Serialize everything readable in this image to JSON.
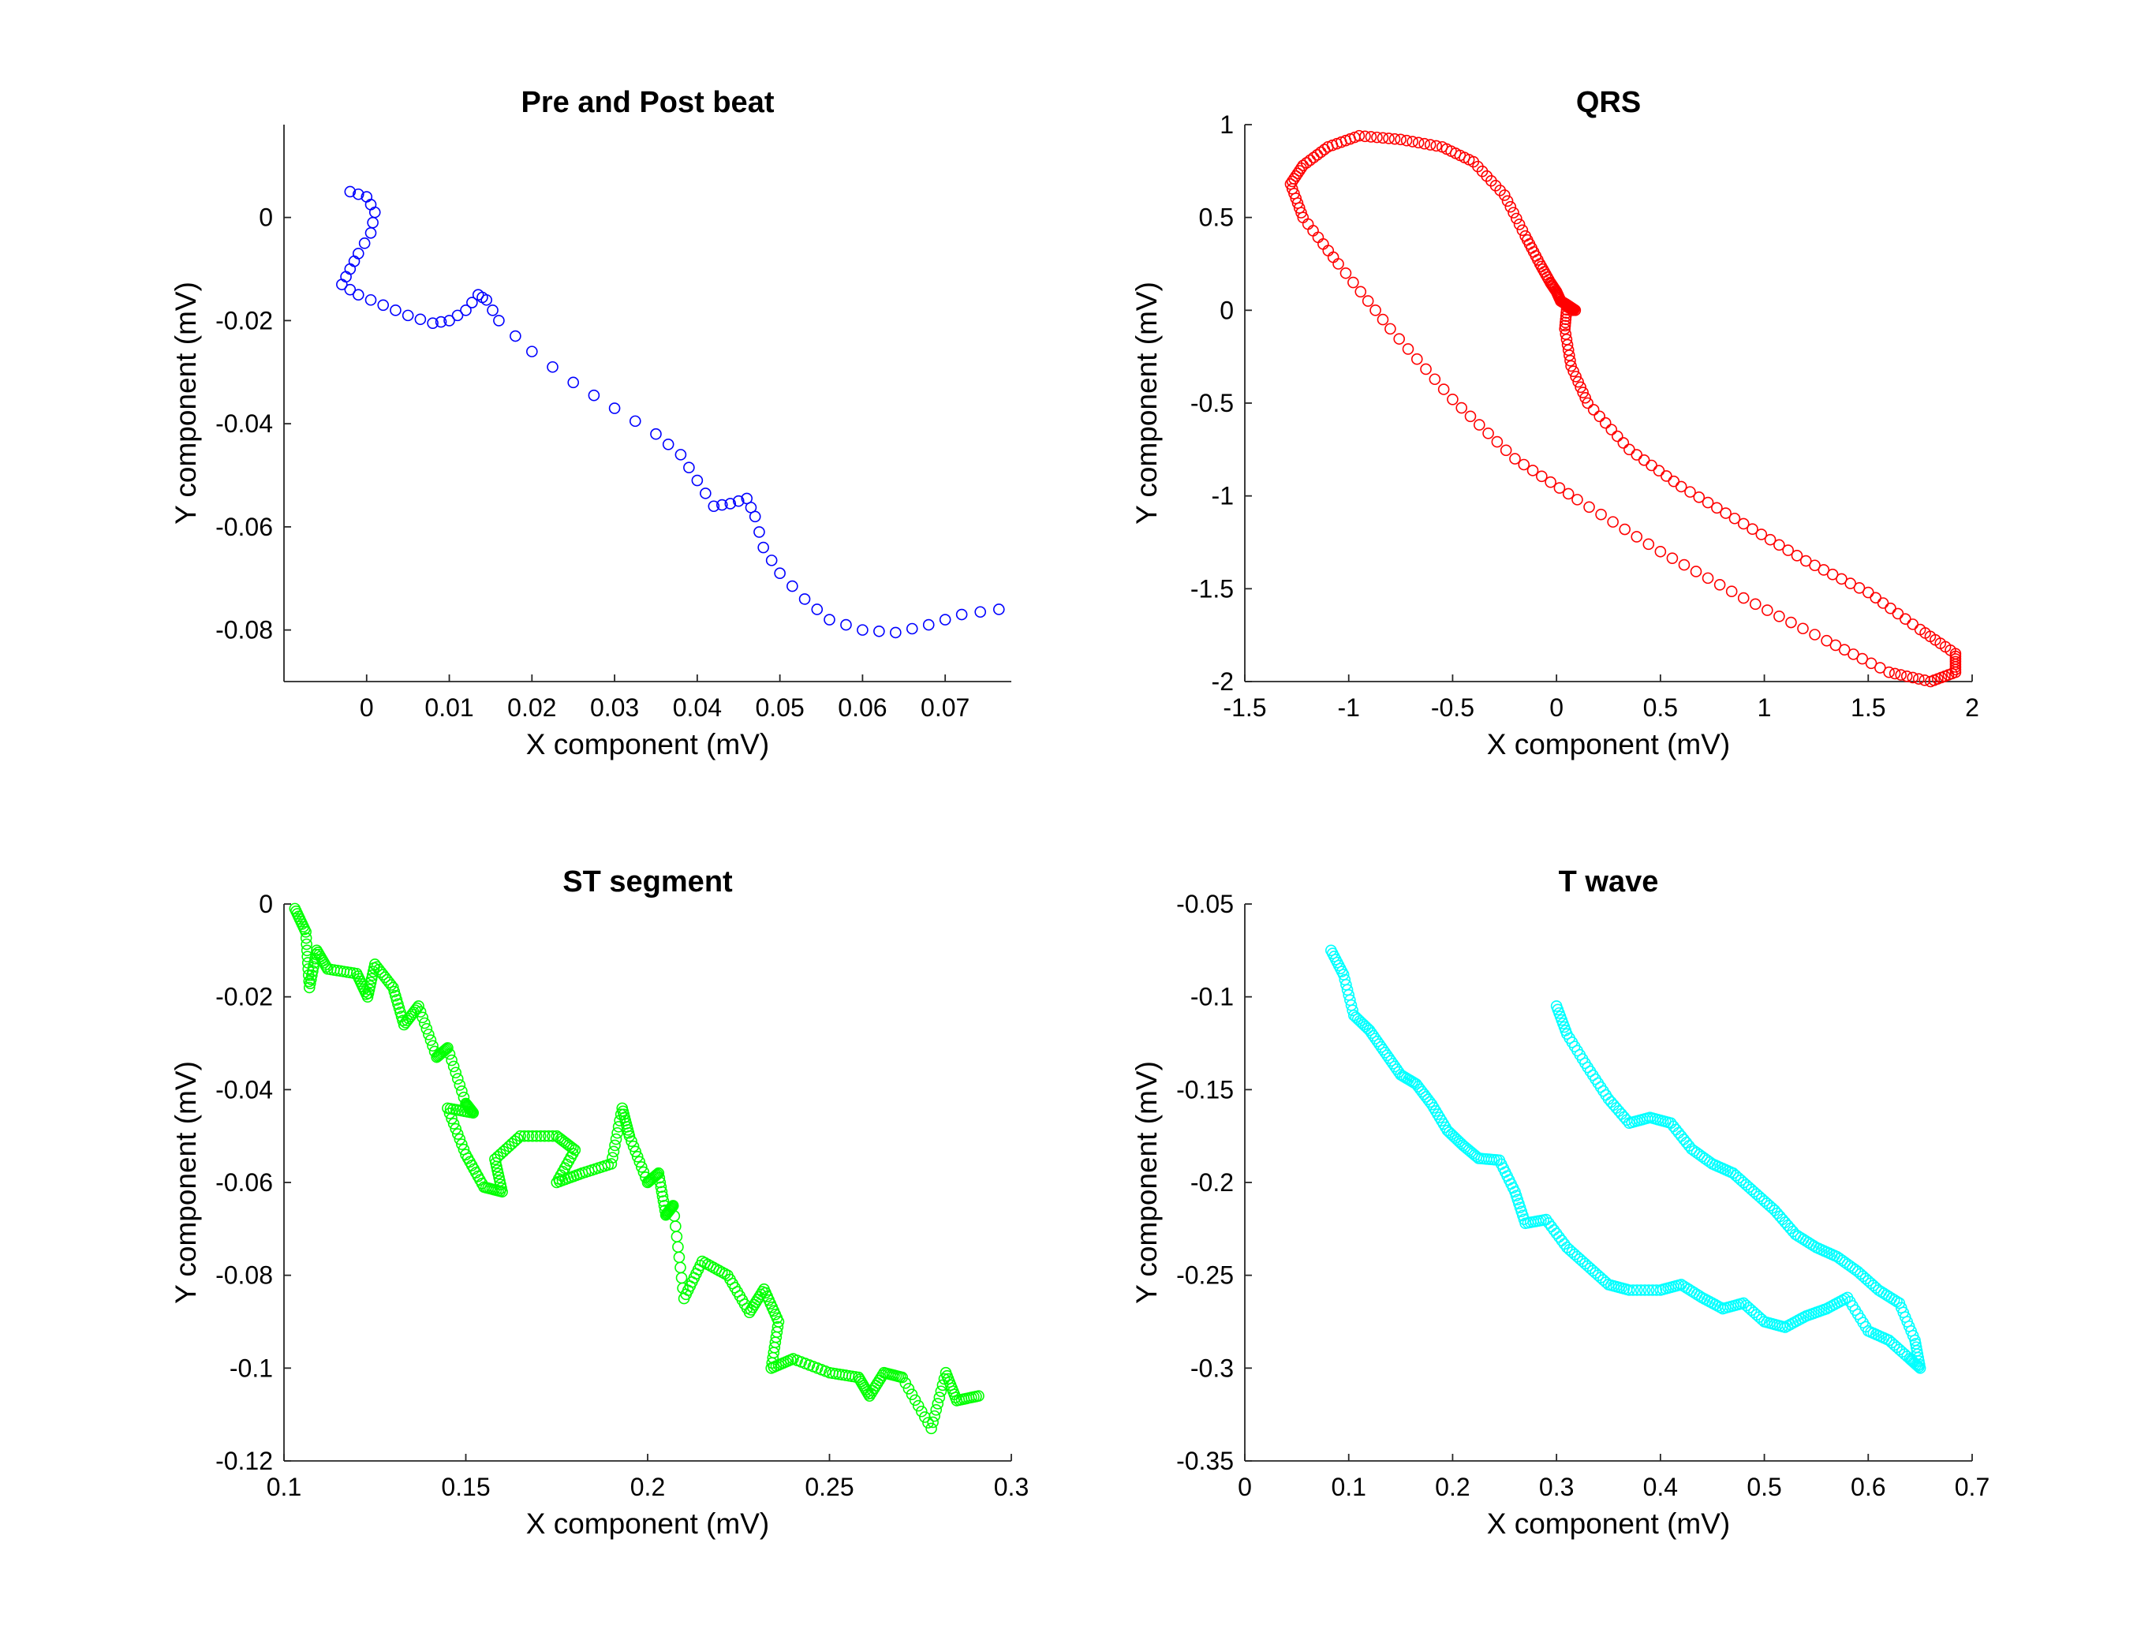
{
  "chart_data": [
    {
      "type": "scatter",
      "title": "Pre and Post beat",
      "xlabel": "X component (mV)",
      "ylabel": "Y component (mV)",
      "xlim": [
        -0.01,
        0.078
      ],
      "ylim": [
        -0.09,
        0.018
      ],
      "xticks": [
        0,
        0.01,
        0.02,
        0.03,
        0.04,
        0.05,
        0.06,
        0.07
      ],
      "xtick_labels": [
        "0",
        "0.01",
        "0.02",
        "0.03",
        "0.04",
        "0.05",
        "0.06",
        "0.07"
      ],
      "yticks": [
        0,
        -0.02,
        -0.04,
        -0.06,
        -0.08
      ],
      "ytick_labels": [
        "0",
        "-0.02",
        "-0.04",
        "-0.06",
        "-0.08"
      ],
      "grid": false,
      "color": "#0000ff",
      "marker": "open-circle",
      "anchors": [
        [
          -0.002,
          0.005
        ],
        [
          0.0,
          0.004
        ],
        [
          0.001,
          0.001
        ],
        [
          0.0005,
          -0.003
        ],
        [
          -0.001,
          -0.007
        ],
        [
          -0.002,
          -0.01
        ],
        [
          -0.003,
          -0.013
        ],
        [
          -0.001,
          -0.015
        ],
        [
          0.002,
          -0.017
        ],
        [
          0.005,
          -0.019
        ],
        [
          0.008,
          -0.0205
        ],
        [
          0.01,
          -0.02
        ],
        [
          0.012,
          -0.018
        ],
        [
          0.0135,
          -0.015
        ],
        [
          0.0145,
          -0.016
        ],
        [
          0.016,
          -0.02
        ],
        [
          0.02,
          -0.026
        ],
        [
          0.025,
          -0.032
        ],
        [
          0.03,
          -0.037
        ],
        [
          0.035,
          -0.042
        ],
        [
          0.038,
          -0.046
        ],
        [
          0.04,
          -0.051
        ],
        [
          0.042,
          -0.056
        ],
        [
          0.044,
          -0.0555
        ],
        [
          0.046,
          -0.0545
        ],
        [
          0.047,
          -0.058
        ],
        [
          0.048,
          -0.064
        ],
        [
          0.05,
          -0.069
        ],
        [
          0.053,
          -0.074
        ],
        [
          0.056,
          -0.078
        ],
        [
          0.06,
          -0.08
        ],
        [
          0.064,
          -0.0805
        ],
        [
          0.068,
          -0.079
        ],
        [
          0.072,
          -0.077
        ],
        [
          0.0765,
          -0.076
        ]
      ],
      "density": 2
    },
    {
      "type": "scatter",
      "title": "QRS",
      "xlabel": "X component (mV)",
      "ylabel": "Y component (mV)",
      "xlim": [
        -1.5,
        2.0
      ],
      "ylim": [
        -2.0,
        1.0
      ],
      "xticks": [
        -1.5,
        -1,
        -0.5,
        0,
        0.5,
        1,
        1.5,
        2
      ],
      "xtick_labels": [
        "-1.5",
        "-1",
        "-0.5",
        "0",
        "0.5",
        "1",
        "1.5",
        "2"
      ],
      "yticks": [
        1,
        0.5,
        0,
        -0.5,
        -1,
        -1.5,
        -2
      ],
      "ytick_labels": [
        "1",
        "0.5",
        "0",
        "-0.5",
        "-1",
        "-1.5",
        "-2"
      ],
      "grid": false,
      "color": "#ff0000",
      "marker": "open-circle",
      "anchors": [
        [
          0.09,
          0.0
        ],
        [
          0.05,
          0.03
        ],
        [
          0.02,
          0.05
        ],
        [
          0.0,
          0.1
        ],
        [
          -0.03,
          0.15
        ],
        [
          -0.08,
          0.25
        ],
        [
          -0.15,
          0.4
        ],
        [
          -0.25,
          0.62
        ],
        [
          -0.4,
          0.8
        ],
        [
          -0.55,
          0.88
        ],
        [
          -0.75,
          0.92
        ],
        [
          -0.95,
          0.94
        ],
        [
          -1.1,
          0.88
        ],
        [
          -1.22,
          0.78
        ],
        [
          -1.28,
          0.68
        ],
        [
          -1.22,
          0.5
        ],
        [
          -1.05,
          0.25
        ],
        [
          -0.8,
          -0.1
        ],
        [
          -0.5,
          -0.48
        ],
        [
          -0.2,
          -0.8
        ],
        [
          0.1,
          -1.02
        ],
        [
          0.5,
          -1.3
        ],
        [
          0.9,
          -1.55
        ],
        [
          1.3,
          -1.78
        ],
        [
          1.6,
          -1.95
        ],
        [
          1.8,
          -2.0
        ],
        [
          1.92,
          -1.95
        ],
        [
          1.92,
          -1.85
        ],
        [
          1.75,
          -1.72
        ],
        [
          1.5,
          -1.52
        ],
        [
          1.2,
          -1.35
        ],
        [
          0.9,
          -1.15
        ],
        [
          0.6,
          -0.95
        ],
        [
          0.35,
          -0.75
        ],
        [
          0.15,
          -0.5
        ],
        [
          0.07,
          -0.3
        ],
        [
          0.04,
          -0.1
        ],
        [
          0.05,
          0.02
        ],
        [
          0.08,
          0.0
        ]
      ],
      "density": 7
    },
    {
      "type": "scatter",
      "title": "ST segment",
      "xlabel": "X component (mV)",
      "ylabel": "Y component (mV)",
      "xlim": [
        0.1,
        0.3
      ],
      "ylim": [
        -0.12,
        0.0
      ],
      "xticks": [
        0.1,
        0.15,
        0.2,
        0.25,
        0.3
      ],
      "xtick_labels": [
        "0.1",
        "0.15",
        "0.2",
        "0.25",
        "0.3"
      ],
      "yticks": [
        0,
        -0.02,
        -0.04,
        -0.06,
        -0.08,
        -0.1,
        -0.12
      ],
      "ytick_labels": [
        "0",
        "-0.02",
        "-0.04",
        "-0.06",
        "-0.08",
        "-0.1",
        "-0.12"
      ],
      "grid": false,
      "color": "#00ff00",
      "marker": "open-circle",
      "anchors": [
        [
          0.103,
          -0.001
        ],
        [
          0.106,
          -0.006
        ],
        [
          0.107,
          -0.018
        ],
        [
          0.109,
          -0.01
        ],
        [
          0.112,
          -0.014
        ],
        [
          0.12,
          -0.015
        ],
        [
          0.123,
          -0.02
        ],
        [
          0.125,
          -0.013
        ],
        [
          0.13,
          -0.018
        ],
        [
          0.133,
          -0.026
        ],
        [
          0.137,
          -0.022
        ],
        [
          0.142,
          -0.033
        ],
        [
          0.145,
          -0.031
        ],
        [
          0.15,
          -0.043
        ],
        [
          0.152,
          -0.045
        ],
        [
          0.145,
          -0.044
        ],
        [
          0.15,
          -0.054
        ],
        [
          0.155,
          -0.061
        ],
        [
          0.16,
          -0.062
        ],
        [
          0.158,
          -0.055
        ],
        [
          0.165,
          -0.05
        ],
        [
          0.175,
          -0.05
        ],
        [
          0.18,
          -0.053
        ],
        [
          0.175,
          -0.06
        ],
        [
          0.182,
          -0.058
        ],
        [
          0.19,
          -0.056
        ],
        [
          0.193,
          -0.044
        ],
        [
          0.195,
          -0.05
        ],
        [
          0.2,
          -0.06
        ],
        [
          0.203,
          -0.058
        ],
        [
          0.205,
          -0.067
        ],
        [
          0.207,
          -0.065
        ],
        [
          0.21,
          -0.085
        ],
        [
          0.215,
          -0.077
        ],
        [
          0.222,
          -0.08
        ],
        [
          0.228,
          -0.088
        ],
        [
          0.232,
          -0.083
        ],
        [
          0.236,
          -0.09
        ],
        [
          0.234,
          -0.1
        ],
        [
          0.24,
          -0.098
        ],
        [
          0.25,
          -0.101
        ],
        [
          0.258,
          -0.102
        ],
        [
          0.261,
          -0.106
        ],
        [
          0.265,
          -0.101
        ],
        [
          0.27,
          -0.102
        ],
        [
          0.278,
          -0.113
        ],
        [
          0.282,
          -0.101
        ],
        [
          0.285,
          -0.107
        ],
        [
          0.291,
          -0.106
        ]
      ],
      "density": 9
    },
    {
      "type": "scatter",
      "title": "T wave",
      "xlabel": "X component (mV)",
      "ylabel": "Y component (mV)",
      "xlim": [
        0,
        0.7
      ],
      "ylim": [
        -0.35,
        -0.05
      ],
      "xticks": [
        0,
        0.1,
        0.2,
        0.3,
        0.4,
        0.5,
        0.6,
        0.7
      ],
      "xtick_labels": [
        "0",
        "0.1",
        "0.2",
        "0.3",
        "0.4",
        "0.5",
        "0.6",
        "0.7"
      ],
      "yticks": [
        -0.05,
        -0.1,
        -0.15,
        -0.2,
        -0.25,
        -0.3,
        -0.35
      ],
      "ytick_labels": [
        "-0.05",
        "-0.1",
        "-0.15",
        "-0.2",
        "-0.25",
        "-0.3",
        "-0.35"
      ],
      "grid": false,
      "color": "#00ffff",
      "marker": "open-circle",
      "anchors": [
        [
          0.083,
          -0.075
        ],
        [
          0.095,
          -0.088
        ],
        [
          0.105,
          -0.11
        ],
        [
          0.12,
          -0.118
        ],
        [
          0.135,
          -0.13
        ],
        [
          0.15,
          -0.142
        ],
        [
          0.165,
          -0.147
        ],
        [
          0.18,
          -0.158
        ],
        [
          0.195,
          -0.172
        ],
        [
          0.21,
          -0.18
        ],
        [
          0.225,
          -0.187
        ],
        [
          0.245,
          -0.188
        ],
        [
          0.26,
          -0.205
        ],
        [
          0.27,
          -0.222
        ],
        [
          0.29,
          -0.22
        ],
        [
          0.31,
          -0.235
        ],
        [
          0.33,
          -0.245
        ],
        [
          0.35,
          -0.255
        ],
        [
          0.37,
          -0.258
        ],
        [
          0.4,
          -0.258
        ],
        [
          0.42,
          -0.255
        ],
        [
          0.44,
          -0.262
        ],
        [
          0.46,
          -0.268
        ],
        [
          0.48,
          -0.265
        ],
        [
          0.5,
          -0.275
        ],
        [
          0.52,
          -0.278
        ],
        [
          0.54,
          -0.272
        ],
        [
          0.56,
          -0.268
        ],
        [
          0.58,
          -0.262
        ],
        [
          0.6,
          -0.28
        ],
        [
          0.62,
          -0.285
        ],
        [
          0.64,
          -0.295
        ],
        [
          0.65,
          -0.3
        ],
        [
          0.645,
          -0.285
        ],
        [
          0.63,
          -0.265
        ],
        [
          0.61,
          -0.258
        ],
        [
          0.59,
          -0.248
        ],
        [
          0.57,
          -0.24
        ],
        [
          0.55,
          -0.235
        ],
        [
          0.53,
          -0.228
        ],
        [
          0.51,
          -0.215
        ],
        [
          0.49,
          -0.205
        ],
        [
          0.47,
          -0.195
        ],
        [
          0.45,
          -0.19
        ],
        [
          0.43,
          -0.182
        ],
        [
          0.41,
          -0.168
        ],
        [
          0.39,
          -0.165
        ],
        [
          0.37,
          -0.168
        ],
        [
          0.35,
          -0.155
        ],
        [
          0.33,
          -0.138
        ],
        [
          0.31,
          -0.12
        ],
        [
          0.3,
          -0.105
        ]
      ],
      "density": 8
    }
  ]
}
